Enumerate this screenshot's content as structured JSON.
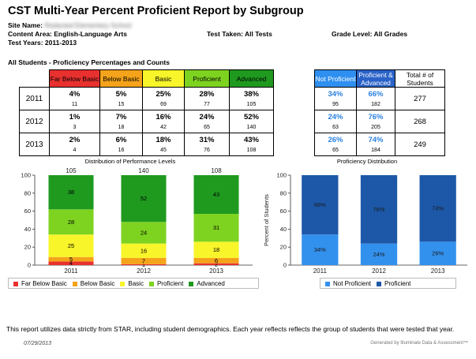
{
  "report": {
    "title": "CST Multi-Year Percent Proficient Report by Subgroup",
    "site_label": "Site Name:",
    "site_value": "Redacted Elementary School",
    "content_area": "Content Area: English-Language Arts",
    "test_taken": "Test Taken: All Tests",
    "grade_level": "Grade Level: All Grades",
    "test_years": "Test Years: 2011-2013",
    "section_title": "All Students - Proficiency Percentages and Counts",
    "footnote": "This report utilizes data strictly from STAR, including student demographics.  Each year reflects reflects the group of students that were tested that year.",
    "date": "07/29/2013",
    "generated_by": "Generated by Illuminate Data & Assessment™"
  },
  "table": {
    "headers": {
      "fbb": "Far Below Basic",
      "bb": "Below Basic",
      "basic": "Basic",
      "prof": "Proficient",
      "adv": "Advanced",
      "np": "Not Proficient",
      "pa": "Proficient & Advanced",
      "total": "Total # of Students"
    },
    "rows": [
      {
        "year": "2011",
        "fbb_pct": "4%",
        "fbb_n": "11",
        "bb_pct": "5%",
        "bb_n": "15",
        "basic_pct": "25%",
        "basic_n": "69",
        "prof_pct": "28%",
        "prof_n": "77",
        "adv_pct": "38%",
        "adv_n": "105",
        "np_pct": "34%",
        "np_n": "95",
        "pa_pct": "66%",
        "pa_n": "182",
        "total": "277"
      },
      {
        "year": "2012",
        "fbb_pct": "1%",
        "fbb_n": "3",
        "bb_pct": "7%",
        "bb_n": "18",
        "basic_pct": "16%",
        "basic_n": "42",
        "prof_pct": "24%",
        "prof_n": "65",
        "adv_pct": "52%",
        "adv_n": "140",
        "np_pct": "24%",
        "np_n": "63",
        "pa_pct": "76%",
        "pa_n": "205",
        "total": "268"
      },
      {
        "year": "2013",
        "fbb_pct": "2%",
        "fbb_n": "4",
        "bb_pct": "6%",
        "bb_n": "16",
        "basic_pct": "18%",
        "basic_n": "45",
        "prof_pct": "31%",
        "prof_n": "76",
        "adv_pct": "43%",
        "adv_n": "108",
        "np_pct": "26%",
        "np_n": "65",
        "pa_pct": "74%",
        "pa_n": "184",
        "total": "249"
      }
    ]
  },
  "colors": {
    "fbb": "#e8312f",
    "bb": "#f5a31a",
    "basic": "#f8f52a",
    "prof": "#7ed321",
    "adv": "#1f9a1f",
    "np_head": "#2f8ff0",
    "pa_head": "#2a62c8",
    "np_bar": "#3391ee",
    "pa_bar": "#1d58a8"
  },
  "chart_data": [
    {
      "type": "bar",
      "stacked": true,
      "title": "Distribution of Performance Levels",
      "categories": [
        "2011",
        "2012",
        "2013"
      ],
      "ylim": [
        0,
        100
      ],
      "yticks": [
        "0",
        "20",
        "40",
        "60",
        "80",
        "100"
      ],
      "series": [
        {
          "name": "Far Below Basic",
          "key": "fbb",
          "values": [
            4,
            1,
            2
          ]
        },
        {
          "name": "Below Basic",
          "key": "bb",
          "values": [
            5,
            7,
            6
          ]
        },
        {
          "name": "Basic",
          "key": "basic",
          "values": [
            25,
            16,
            18
          ]
        },
        {
          "name": "Proficient",
          "key": "prof",
          "values": [
            28,
            24,
            31
          ]
        },
        {
          "name": "Advanced",
          "key": "adv",
          "values": [
            38,
            52,
            43
          ]
        }
      ],
      "legend_position": "bottom"
    },
    {
      "type": "bar",
      "stacked": true,
      "title": "Proficiency Distribution",
      "ylabel": "Percent of Students",
      "categories": [
        "2011",
        "2012",
        "2013"
      ],
      "ylim": [
        0,
        100
      ],
      "yticks": [
        "0",
        "20",
        "40",
        "60",
        "80",
        "100"
      ],
      "series": [
        {
          "name": "Not Proficient",
          "key": "np_bar",
          "values": [
            34,
            24,
            26
          ],
          "labels": [
            "34%",
            "24%",
            "26%"
          ]
        },
        {
          "name": "Proficient",
          "key": "pa_bar",
          "values": [
            66,
            76,
            74
          ],
          "labels": [
            "66%",
            "76%",
            "74%"
          ]
        }
      ],
      "legend_position": "bottom"
    }
  ]
}
